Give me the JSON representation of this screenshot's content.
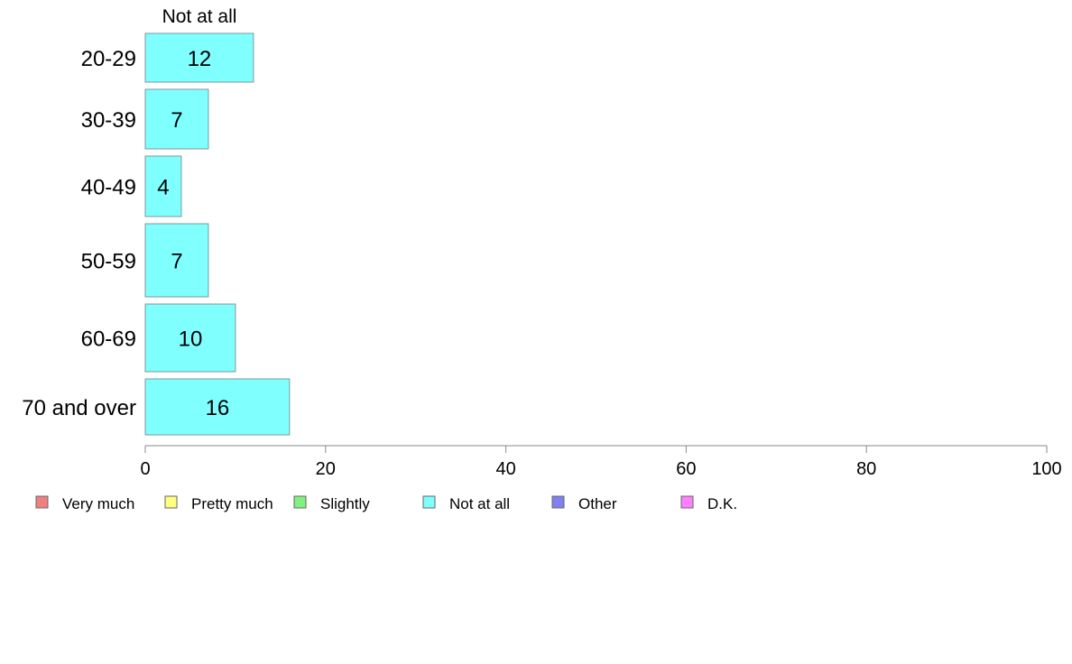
{
  "chart_data": {
    "type": "bar",
    "orientation": "horizontal",
    "categories": [
      "20-29",
      "30-39",
      "40-49",
      "50-59",
      "60-69",
      "70 and over"
    ],
    "series": [
      {
        "name": "Not at all",
        "values": [
          12,
          7,
          4,
          7,
          10,
          16
        ],
        "color": "#80ffff"
      }
    ],
    "column_header": "Not at all",
    "xlim": [
      0,
      100
    ],
    "x_ticks": [
      0,
      20,
      40,
      60,
      80,
      100
    ],
    "x_tick_labels": [
      "0",
      "20",
      "40",
      "60",
      "80",
      "100"
    ],
    "grid": false,
    "legend_position": "bottom",
    "legend": [
      {
        "label": "Very much",
        "color": "#f08080"
      },
      {
        "label": "Pretty much",
        "color": "#ffff80"
      },
      {
        "label": "Slightly",
        "color": "#80f080"
      },
      {
        "label": "Not at all",
        "color": "#80ffff"
      },
      {
        "label": "Other",
        "color": "#8080f0"
      },
      {
        "label": "D.K.",
        "color": "#ff80ff"
      }
    ]
  }
}
